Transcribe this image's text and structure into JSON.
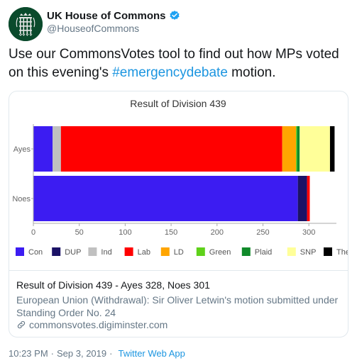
{
  "account": {
    "name": "UK House of Commons",
    "handle": "@HouseofCommons",
    "avatar_icon": "portcullis-icon",
    "verified_icon": "verified-badge-icon"
  },
  "tweet": {
    "text_before": "Use our CommonsVotes tool to find out how MPs voted on this evening's ",
    "hashtag": "#emergencydebate",
    "text_after": " motion."
  },
  "chart_data": {
    "type": "bar",
    "orientation": "horizontal",
    "stacked": true,
    "title": "Result of Division 439",
    "categories": [
      "Ayes",
      "Noes"
    ],
    "xlim": [
      0,
      330
    ],
    "xticks": [
      0,
      50,
      100,
      150,
      200,
      250,
      300
    ],
    "grid": false,
    "legend_position": "bottom",
    "series": [
      {
        "name": "Con",
        "color": "#3c1cf2",
        "values": [
          21,
          288
        ]
      },
      {
        "name": "DUP",
        "color": "#1b1266",
        "values": [
          0,
          10
        ]
      },
      {
        "name": "Ind",
        "color": "#c0c0c0",
        "values": [
          9,
          0
        ]
      },
      {
        "name": "Lab",
        "color": "#ff0000",
        "values": [
          241,
          3
        ]
      },
      {
        "name": "LD",
        "color": "#ffa500",
        "values": [
          15,
          0
        ]
      },
      {
        "name": "Green",
        "color": "#5fd11a",
        "values": [
          1,
          0
        ]
      },
      {
        "name": "Plaid",
        "color": "#108a2a",
        "values": [
          3,
          0
        ]
      },
      {
        "name": "SNP",
        "color": "#ffff99",
        "values": [
          33,
          0
        ]
      },
      {
        "name": "The",
        "color": "#000000",
        "values": [
          5,
          0
        ]
      }
    ]
  },
  "card": {
    "title": "Result of Division 439 - Ayes 328, Noes 301",
    "description": "European Union (Withdrawal): Sir Oliver Letwin's motion submitted under Standing Order No. 24",
    "domain": "commonsvotes.digiminster.com",
    "link_icon": "link-icon"
  },
  "footer": {
    "time": "10:23 PM",
    "separator": "·",
    "date": "Sep 3, 2019",
    "app": "Twitter Web App"
  }
}
